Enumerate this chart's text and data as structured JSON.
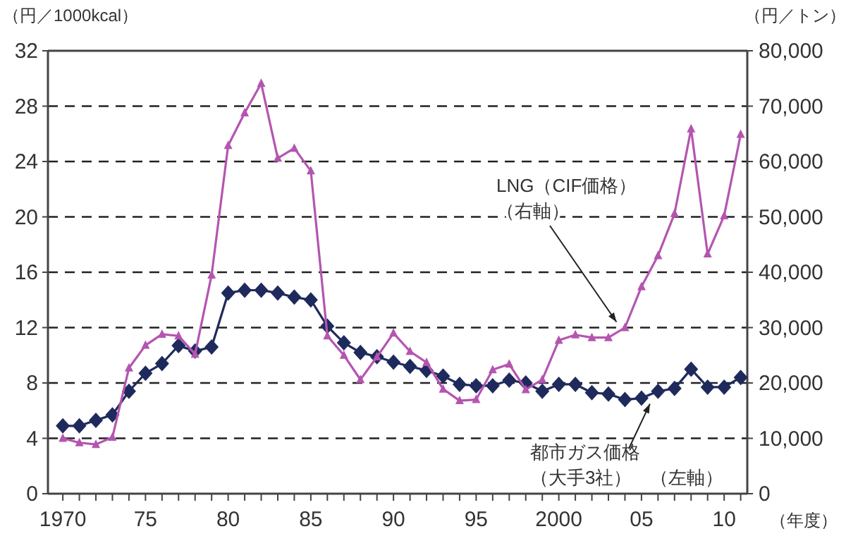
{
  "chart_data": {
    "type": "line",
    "ylabel": "（円／1000kcal）",
    "y2label": "（円／トン）",
    "xlabel": "（年度）",
    "x": [
      1970,
      1971,
      1972,
      1973,
      1974,
      1975,
      1976,
      1977,
      1978,
      1979,
      1980,
      1981,
      1982,
      1983,
      1984,
      1985,
      1986,
      1987,
      1988,
      1989,
      1990,
      1991,
      1992,
      1993,
      1994,
      1995,
      1996,
      1997,
      1998,
      1999,
      2000,
      2001,
      2002,
      2003,
      2004,
      2005,
      2006,
      2007,
      2008,
      2009,
      2010,
      2011
    ],
    "series": [
      {
        "name": "都市ガス価格（大手3社）　（左軸）",
        "color": "#1f2a5c",
        "marker": "diamond",
        "values": [
          4.9,
          4.9,
          5.3,
          5.7,
          7.4,
          8.7,
          9.4,
          10.7,
          10.3,
          10.6,
          14.5,
          14.7,
          14.7,
          14.5,
          14.2,
          14.0,
          12.1,
          10.9,
          10.2,
          9.9,
          9.5,
          9.2,
          8.9,
          8.5,
          7.9,
          7.8,
          7.8,
          8.2,
          8.0,
          7.4,
          7.9,
          7.9,
          7.3,
          7.2,
          6.8,
          6.9,
          7.4,
          7.6,
          9.0,
          7.7,
          7.7,
          8.4
        ]
      },
      {
        "name": "LNG（CIF価格）（右軸）",
        "color": "#b455b0",
        "marker": "triangle",
        "axis": "y2",
        "values": [
          10000,
          9200,
          8900,
          10200,
          22700,
          26800,
          28800,
          28500,
          25200,
          39500,
          62900,
          68800,
          74100,
          60600,
          62400,
          58300,
          28500,
          25000,
          20600,
          24700,
          29000,
          25700,
          23700,
          18900,
          16800,
          17000,
          22400,
          23400,
          18800,
          20600,
          27700,
          28700,
          28200,
          28200,
          30000,
          37400,
          43000,
          50600,
          65900,
          43300,
          50200,
          64900
        ]
      }
    ],
    "xlim": [
      1969.1,
      2011.4
    ],
    "xticks": [
      {
        "value": 1970,
        "label": "1970"
      },
      {
        "value": 1971,
        "label": null
      },
      {
        "value": 1972,
        "label": null
      },
      {
        "value": 1973,
        "label": null
      },
      {
        "value": 1974,
        "label": null
      },
      {
        "value": 1975,
        "label": "75"
      },
      {
        "value": 1976,
        "label": null
      },
      {
        "value": 1977,
        "label": null
      },
      {
        "value": 1978,
        "label": null
      },
      {
        "value": 1979,
        "label": null
      },
      {
        "value": 1980,
        "label": "80"
      },
      {
        "value": 1981,
        "label": null
      },
      {
        "value": 1982,
        "label": null
      },
      {
        "value": 1983,
        "label": null
      },
      {
        "value": 1984,
        "label": null
      },
      {
        "value": 1985,
        "label": "85"
      },
      {
        "value": 1986,
        "label": null
      },
      {
        "value": 1987,
        "label": null
      },
      {
        "value": 1988,
        "label": null
      },
      {
        "value": 1989,
        "label": null
      },
      {
        "value": 1990,
        "label": "90"
      },
      {
        "value": 1991,
        "label": null
      },
      {
        "value": 1992,
        "label": null
      },
      {
        "value": 1993,
        "label": null
      },
      {
        "value": 1994,
        "label": null
      },
      {
        "value": 1995,
        "label": "95"
      },
      {
        "value": 1996,
        "label": null
      },
      {
        "value": 1997,
        "label": null
      },
      {
        "value": 1998,
        "label": null
      },
      {
        "value": 1999,
        "label": null
      },
      {
        "value": 2000,
        "label": "2000"
      },
      {
        "value": 2001,
        "label": null
      },
      {
        "value": 2002,
        "label": null
      },
      {
        "value": 2003,
        "label": null
      },
      {
        "value": 2004,
        "label": null
      },
      {
        "value": 2005,
        "label": "05"
      },
      {
        "value": 2006,
        "label": null
      },
      {
        "value": 2007,
        "label": null
      },
      {
        "value": 2008,
        "label": null
      },
      {
        "value": 2009,
        "label": null
      },
      {
        "value": 2010,
        "label": "10"
      },
      {
        "value": 2011,
        "label": null
      }
    ],
    "ylim": [
      0,
      32
    ],
    "yticks": [
      0,
      4,
      8,
      12,
      16,
      20,
      24,
      28,
      32
    ],
    "y2lim": [
      0,
      80000
    ],
    "y2ticks": [
      {
        "value": 0,
        "label": "0"
      },
      {
        "value": 10000,
        "label": "10,000"
      },
      {
        "value": 20000,
        "label": "20,000"
      },
      {
        "value": 30000,
        "label": "30,000"
      },
      {
        "value": 40000,
        "label": "40,000"
      },
      {
        "value": 50000,
        "label": "50,000"
      },
      {
        "value": 60000,
        "label": "60,000"
      },
      {
        "value": 70000,
        "label": "70,000"
      },
      {
        "value": 80000,
        "label": "80,000"
      }
    ],
    "grid": "y",
    "legend": false,
    "line_style": "solid"
  }
}
